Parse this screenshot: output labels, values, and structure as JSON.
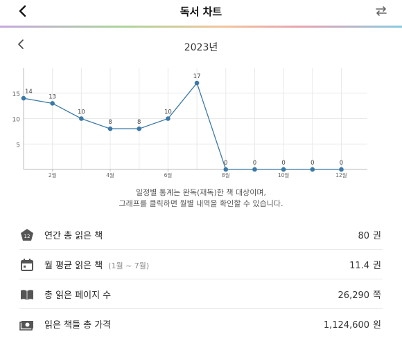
{
  "header": {
    "title": "독서 차트"
  },
  "year_label": "2023년",
  "chart_data": {
    "type": "line",
    "x": [
      1,
      2,
      3,
      4,
      5,
      6,
      7,
      8,
      9,
      10,
      11,
      12
    ],
    "x_tick_labels": [
      "2월",
      "4월",
      "6월",
      "8월",
      "10월",
      "12월"
    ],
    "x_tick_positions": [
      2,
      4,
      6,
      8,
      10,
      12
    ],
    "series": [
      {
        "values": [
          14,
          13,
          10,
          8,
          8,
          10,
          17,
          0,
          0,
          0,
          0,
          0
        ]
      }
    ],
    "y_ticks": [
      5,
      10,
      15
    ],
    "ylim": [
      0,
      20
    ],
    "grid": true,
    "colors": {
      "line": "#3b79a6",
      "grid": "#e9e9e9",
      "axis": "#bbbbbb"
    }
  },
  "note": {
    "line1": "일정별 통계는 완독(재독)한 책 대상이며,",
    "line2": "그래프를 클릭하면 월별 내역을 확인할 수 있습니다."
  },
  "stats": {
    "annual": {
      "label": "연간 총 읽은 책",
      "value": "80",
      "unit": "권",
      "icon": "book-count-badge-icon",
      "badge": "12"
    },
    "monthly": {
      "label": "월 평균 읽은 책",
      "sub": "(1월 ~ 7월)",
      "value": "11.4",
      "unit": "권",
      "icon": "calendar-icon"
    },
    "pages": {
      "label": "총 읽은 페이지 수",
      "value": "26,290",
      "unit": "쪽",
      "icon": "open-book-icon"
    },
    "price": {
      "label": "읽은 책들 총 가격",
      "value": "1,124,600",
      "unit": "원",
      "icon": "money-icon"
    }
  }
}
